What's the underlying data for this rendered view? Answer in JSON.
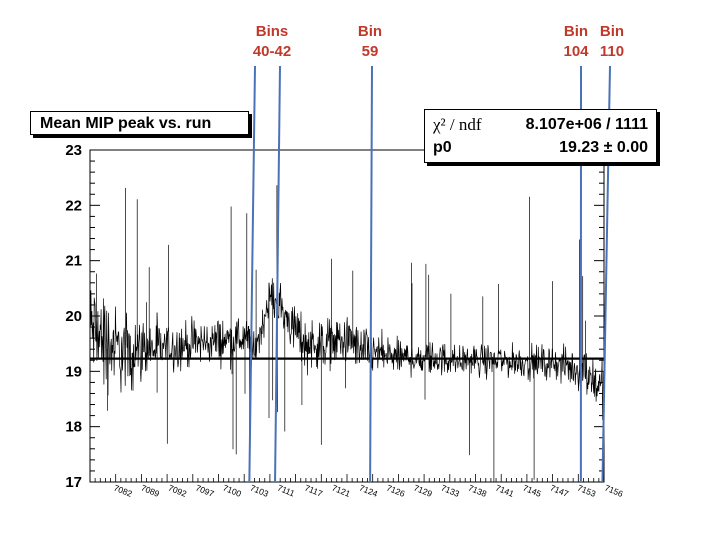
{
  "annotations": [
    {
      "line1": "Bins",
      "line2": "40-42"
    },
    {
      "line1": "Bin",
      "line2": "59"
    },
    {
      "line1": "Bin",
      "line2": "104"
    },
    {
      "line1": "Bin",
      "line2": "110"
    }
  ],
  "stats": {
    "chi2_label": "χ² / ndf",
    "chi2_value": "8.107e+06 / 1111",
    "p0_label": "p0",
    "p0_value": "19.23 ± 0.00"
  },
  "colors": {
    "annotation_text": "#c0392b",
    "marker_line": "#4a72b8",
    "data": "#000000"
  },
  "chart_data": {
    "type": "line",
    "title": "Mean MIP peak vs. run",
    "xlabel": "",
    "ylabel": "",
    "ylim": [
      17,
      23
    ],
    "yticks": [
      17,
      18,
      19,
      20,
      21,
      22,
      23
    ],
    "xticks": [
      "7082",
      "7089",
      "7092",
      "7097",
      "7100",
      "7103",
      "7111",
      "7117",
      "7121",
      "7124",
      "7126",
      "7129",
      "7133",
      "7138",
      "7141",
      "7145",
      "7147",
      "7153",
      "7156"
    ],
    "fit": {
      "function": "pol0",
      "p0": 19.23
    },
    "n_bins": 1112,
    "envelope": [
      {
        "x": 0.0,
        "y": 19.8,
        "noise": 0.55
      },
      {
        "x": 0.02,
        "y": 19.6,
        "noise": 0.55
      },
      {
        "x": 0.06,
        "y": 19.35,
        "noise": 0.45
      },
      {
        "x": 0.12,
        "y": 19.4,
        "noise": 0.3
      },
      {
        "x": 0.2,
        "y": 19.5,
        "noise": 0.25
      },
      {
        "x": 0.3,
        "y": 19.6,
        "noise": 0.25
      },
      {
        "x": 0.32,
        "y": 19.3,
        "noise": 0.25
      },
      {
        "x": 0.35,
        "y": 20.4,
        "noise": 0.2
      },
      {
        "x": 0.38,
        "y": 20.0,
        "noise": 0.25
      },
      {
        "x": 0.42,
        "y": 19.5,
        "noise": 0.3
      },
      {
        "x": 0.5,
        "y": 19.55,
        "noise": 0.25
      },
      {
        "x": 0.54,
        "y": 19.35,
        "noise": 0.25
      },
      {
        "x": 0.6,
        "y": 19.25,
        "noise": 0.2
      },
      {
        "x": 0.75,
        "y": 19.2,
        "noise": 0.18
      },
      {
        "x": 0.9,
        "y": 19.15,
        "noise": 0.18
      },
      {
        "x": 0.96,
        "y": 19.0,
        "noise": 0.25
      },
      {
        "x": 1.0,
        "y": 18.7,
        "noise": 0.3
      }
    ],
    "markers": [
      {
        "label": "Bins 40-42",
        "x": 0.31,
        "x2": 0.36
      },
      {
        "label": "Bin 59",
        "x": 0.545,
        "x2": 0.552
      },
      {
        "label": "Bin 104",
        "x": 0.955,
        "x2": 0.962
      },
      {
        "label": "Bin 110",
        "x": 0.997,
        "x2": 1.01
      }
    ]
  }
}
